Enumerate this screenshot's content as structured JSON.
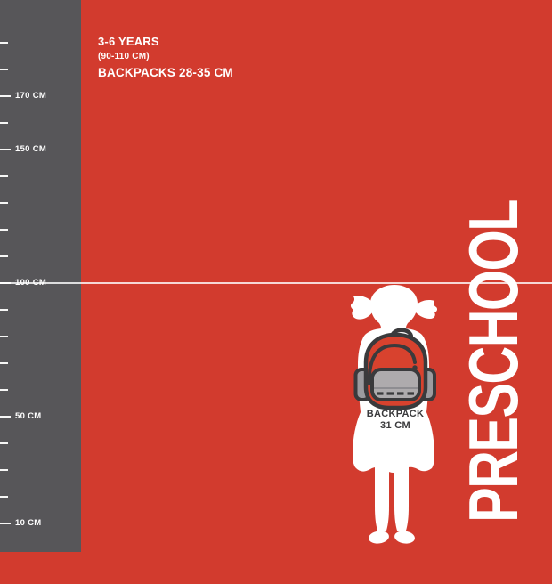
{
  "header": {
    "age_range": "3-6 YEARS",
    "height_range": "(90-110 CM)",
    "backpack_size_range": "BACKPACKS 28-35 CM"
  },
  "ruler": {
    "unit": "CM",
    "marks": [
      {
        "text": "170 CM",
        "cm": 170
      },
      {
        "text": "150 CM",
        "cm": 150
      },
      {
        "text": "100 CM",
        "cm": 100
      },
      {
        "text": "50 CM",
        "cm": 50
      },
      {
        "text": "10 CM",
        "cm": 10
      }
    ],
    "tick_top_cm": 190,
    "tick_bottom_cm": 10,
    "tick_step_cm": 10
  },
  "guideline": {
    "cm": 100
  },
  "figure": {
    "description": "white back-view silhouette of preschool girl with pigtails wearing backpack",
    "backpack_label": {
      "line1": "BACKPACK",
      "line2": "31 CM"
    }
  },
  "category_label": "PRESCHOOL",
  "colors": {
    "background_red": "#d23b2e",
    "ruler_gray": "#575659",
    "outline_dark": "#3a3a3c",
    "backpack_red": "#d8422e",
    "front_pocket_gray": "#aeabad",
    "side_pocket_gray": "#9c9b9f",
    "text_white": "#ffffff"
  }
}
